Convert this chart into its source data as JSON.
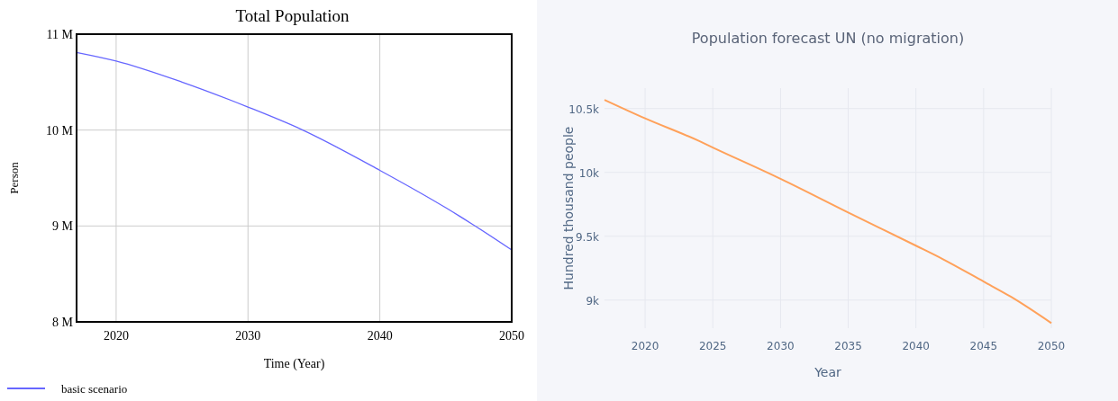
{
  "chart_data": [
    {
      "type": "line",
      "title": "Total Population",
      "xlabel": "Time (Year)",
      "ylabel": "Person",
      "x": [
        2017,
        2020,
        2025,
        2030,
        2034,
        2040,
        2045,
        2047,
        2050
      ],
      "series": [
        {
          "name": "basic scenario",
          "color": "#6666ff",
          "values": [
            10810000,
            10720000,
            10500000,
            10240000,
            10010000,
            9580000,
            9190000,
            9020000,
            8750000
          ]
        }
      ],
      "xlim": [
        2017,
        2050
      ],
      "xticks": [
        2020,
        2030,
        2040,
        2050
      ],
      "ylim": [
        8000000,
        11000000
      ],
      "yticks": [
        {
          "value": 8000000,
          "label": "8 M"
        },
        {
          "value": 9000000,
          "label": "9 M"
        },
        {
          "value": 10000000,
          "label": "10 M"
        },
        {
          "value": 11000000,
          "label": "11 M"
        }
      ],
      "grid": true,
      "legend": "bottom"
    },
    {
      "type": "line",
      "title": "Population forecast UN (no migration)",
      "xlabel": "Year",
      "ylabel": "Hundred thousand people",
      "x": [
        2017,
        2020,
        2024,
        2025,
        2030,
        2035,
        2040,
        2042,
        2045,
        2047,
        2050
      ],
      "series": [
        {
          "color": "#ffa15a",
          "values": [
            10568,
            10423,
            10245,
            10195,
            9950,
            9686,
            9426,
            9320,
            9145,
            9027,
            8820
          ]
        }
      ],
      "xlim": [
        2017,
        2050
      ],
      "xticks": [
        2020,
        2025,
        2030,
        2035,
        2040,
        2045,
        2050
      ],
      "ylim": [
        8780,
        10660
      ],
      "yticks": [
        {
          "value": 9000,
          "label": "9k"
        },
        {
          "value": 9500,
          "label": "9.5k"
        },
        {
          "value": 10000,
          "label": "10k"
        },
        {
          "value": 10500,
          "label": "10.5k"
        }
      ],
      "grid": true
    }
  ]
}
